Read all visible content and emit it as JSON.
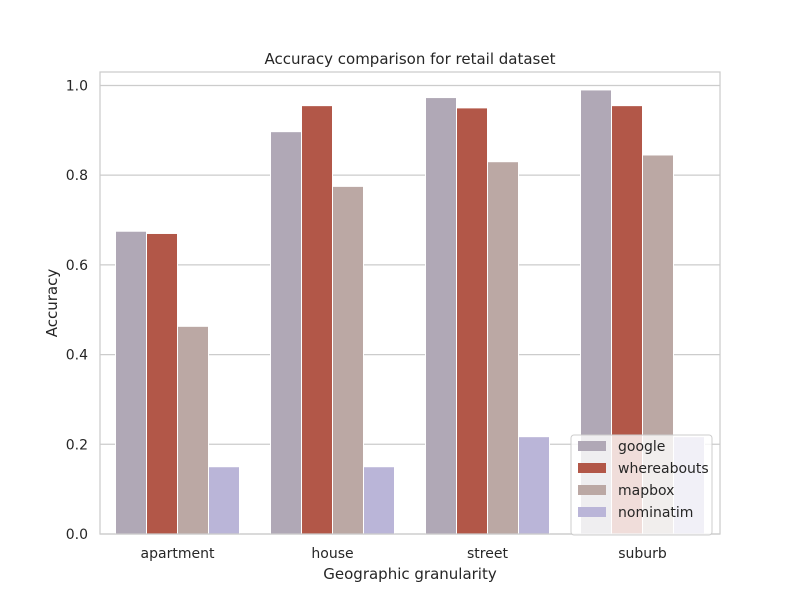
{
  "chart_data": {
    "type": "bar",
    "title": "Accuracy comparison for retail dataset",
    "xlabel": "Geographic granularity",
    "ylabel": "Accuracy",
    "ylim": [
      0,
      1.03
    ],
    "yticks": [
      "0.0",
      "0.2",
      "0.4",
      "0.6",
      "0.8",
      "1.0"
    ],
    "grid": true,
    "legend_position": "lower-right",
    "categories": [
      "apartment",
      "house",
      "street",
      "suburb"
    ],
    "series": [
      {
        "name": "google",
        "color": "#b0a8b6",
        "values": [
          0.675,
          0.897,
          0.973,
          0.99
        ]
      },
      {
        "name": "whereabouts",
        "color": "#b25748",
        "values": [
          0.67,
          0.955,
          0.95,
          0.955
        ]
      },
      {
        "name": "mapbox",
        "color": "#bba8a4",
        "values": [
          0.463,
          0.775,
          0.83,
          0.845
        ]
      },
      {
        "name": "nominatim",
        "color": "#bab5d8",
        "values": [
          0.15,
          0.15,
          0.217,
          0.217
        ]
      }
    ]
  }
}
